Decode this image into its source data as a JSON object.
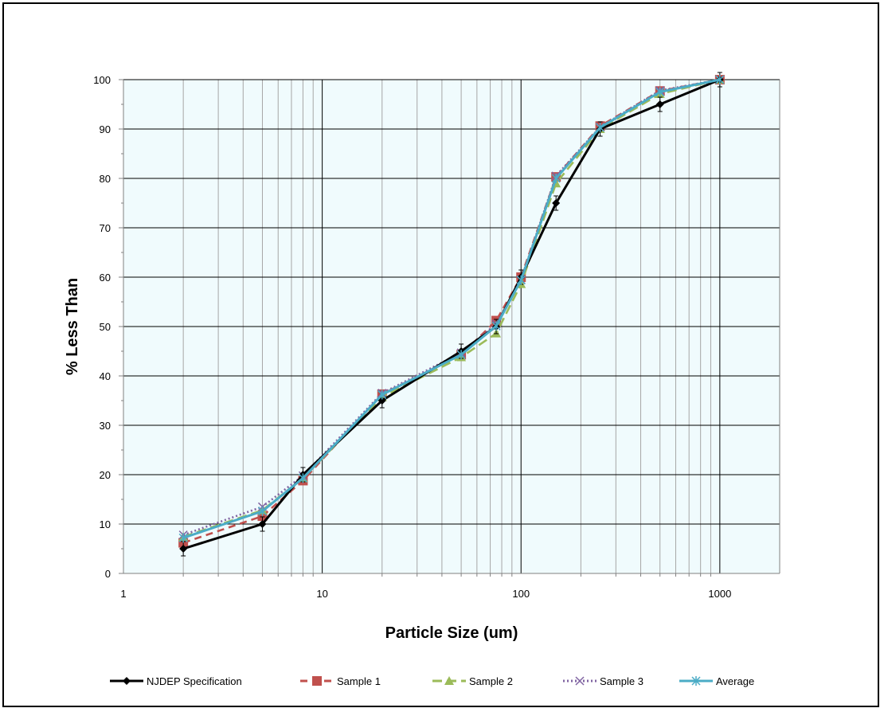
{
  "chart_data": {
    "type": "line",
    "title": "",
    "xlabel": "Particle Size (um)",
    "ylabel": "% Less Than",
    "xscale": "log",
    "xlim": [
      1,
      2000
    ],
    "ylim": [
      0,
      100
    ],
    "x_ticks": [
      1,
      10,
      100,
      1000
    ],
    "y_ticks": [
      0,
      10,
      20,
      30,
      40,
      50,
      60,
      70,
      80,
      90,
      100
    ],
    "grid": true,
    "plot_background": "#f0fbfd",
    "legend_position": "bottom",
    "series": [
      {
        "name": "NJDEP Specification",
        "color": "#000000",
        "marker": "diamond",
        "dash": "solid",
        "error_bars": true,
        "x": [
          2,
          5,
          8,
          20,
          50,
          75,
          100,
          150,
          250,
          500,
          1000
        ],
        "y": [
          5,
          10,
          20,
          35,
          45,
          50,
          60,
          75,
          90,
          95,
          100
        ]
      },
      {
        "name": "Sample 1",
        "color": "#c0504d",
        "marker": "square",
        "dash": "dashed",
        "x": [
          2,
          5,
          8,
          20,
          50,
          75,
          100,
          150,
          250,
          500,
          1000
        ],
        "y": [
          6.2,
          11.6,
          18.8,
          36.3,
          44.3,
          51.2,
          60,
          80.3,
          90.6,
          97.7,
          100
        ]
      },
      {
        "name": "Sample 2",
        "color": "#9bbb59",
        "marker": "triangle",
        "dash": "longdash",
        "x": [
          2,
          5,
          8,
          20,
          50,
          75,
          100,
          150,
          250,
          500,
          1000
        ],
        "y": [
          7.4,
          12.8,
          19.3,
          35.7,
          43.8,
          48.6,
          58.6,
          79,
          90,
          97.1,
          100
        ]
      },
      {
        "name": "Sample 3",
        "color": "#8064a2",
        "marker": "x",
        "dash": "dotted",
        "x": [
          2,
          5,
          8,
          20,
          50,
          75,
          100,
          150,
          250,
          500,
          1000
        ],
        "y": [
          7.8,
          13.5,
          19.8,
          36.5,
          44.7,
          50.5,
          59.5,
          80.5,
          90.4,
          97.8,
          100
        ]
      },
      {
        "name": "Average",
        "color": "#4bacc6",
        "marker": "star",
        "dash": "solid",
        "x": [
          2,
          5,
          8,
          20,
          50,
          75,
          100,
          150,
          250,
          500,
          1000
        ],
        "y": [
          7.2,
          12.6,
          19.3,
          36.2,
          44.3,
          50.1,
          59.4,
          80,
          90.3,
          97.5,
          100
        ]
      }
    ]
  }
}
